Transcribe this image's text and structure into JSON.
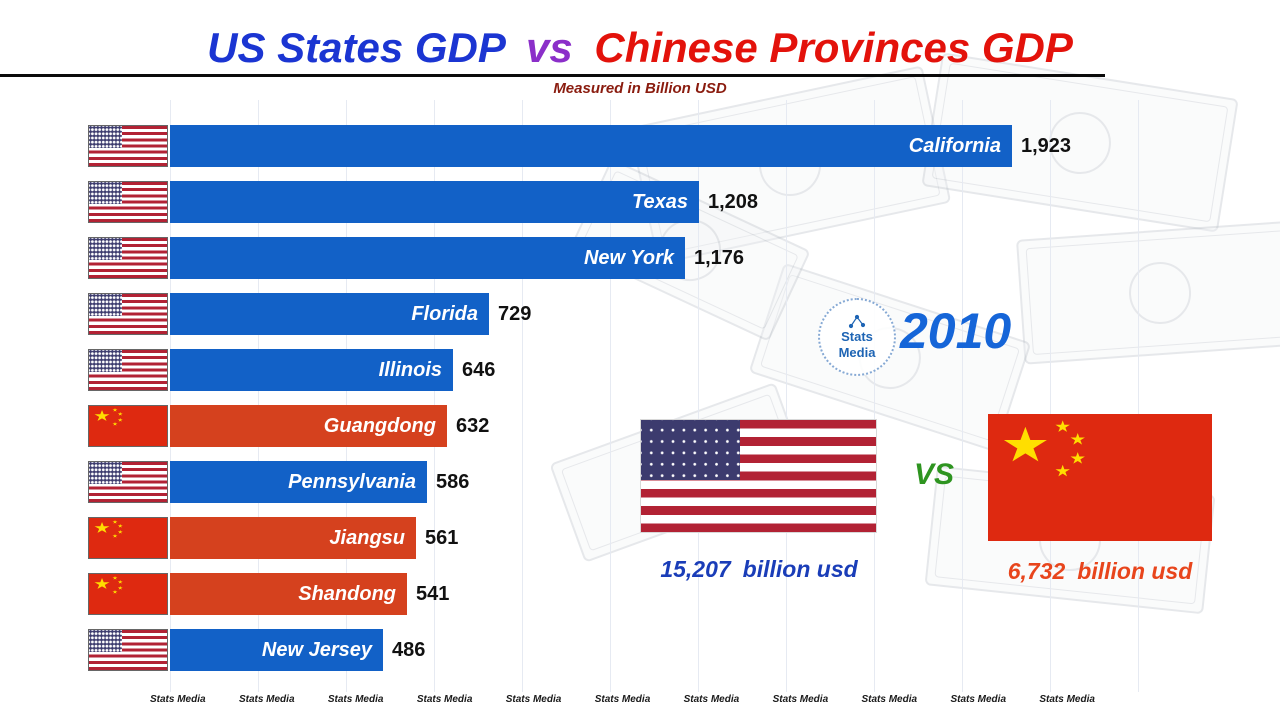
{
  "title": {
    "part1": "US States GDP",
    "part2": "vs",
    "part3": "Chinese Provinces GDP"
  },
  "subtitle": "Measured in Billion USD",
  "year": "2010",
  "logo": {
    "line1": "Stats",
    "line2": "Media"
  },
  "totals": {
    "us_value": "15,207",
    "us_unit": "billion usd",
    "cn_value": "6,732",
    "cn_unit": "billion usd",
    "vs": "VS"
  },
  "watermark": {
    "text": "Stats Media",
    "count": 11
  },
  "colors": {
    "us_bar": "#1261c7",
    "cn_bar": "#d5411e",
    "title_blue": "#1b35d2",
    "title_purple": "#8b2fc9",
    "title_red": "#e3120b",
    "year_blue": "#1565d8",
    "us_total_blue": "#1a3db8",
    "cn_total_red": "#e8451c",
    "vs_green": "#2e9420"
  },
  "chart_data": {
    "type": "bar",
    "orientation": "horizontal",
    "title": "US States GDP vs Chinese Provinces GDP",
    "subtitle": "Measured in Billion USD",
    "unit": "Billion USD",
    "year": "2010",
    "xlim": [
      0,
      1923
    ],
    "grid": true,
    "rows": [
      {
        "name": "California",
        "country": "US",
        "value": 1923,
        "display": "1,923"
      },
      {
        "name": "Texas",
        "country": "US",
        "value": 1208,
        "display": "1,208"
      },
      {
        "name": "New York",
        "country": "US",
        "value": 1176,
        "display": "1,176"
      },
      {
        "name": "Florida",
        "country": "US",
        "value": 729,
        "display": "729"
      },
      {
        "name": "Illinois",
        "country": "US",
        "value": 646,
        "display": "646"
      },
      {
        "name": "Guangdong",
        "country": "CN",
        "value": 632,
        "display": "632"
      },
      {
        "name": "Pennsylvania",
        "country": "US",
        "value": 586,
        "display": "586"
      },
      {
        "name": "Jiangsu",
        "country": "CN",
        "value": 561,
        "display": "561"
      },
      {
        "name": "Shandong",
        "country": "CN",
        "value": 541,
        "display": "541"
      },
      {
        "name": "New Jersey",
        "country": "US",
        "value": 486,
        "display": "486"
      }
    ],
    "totals": {
      "us": 15207,
      "china": 6732
    }
  }
}
